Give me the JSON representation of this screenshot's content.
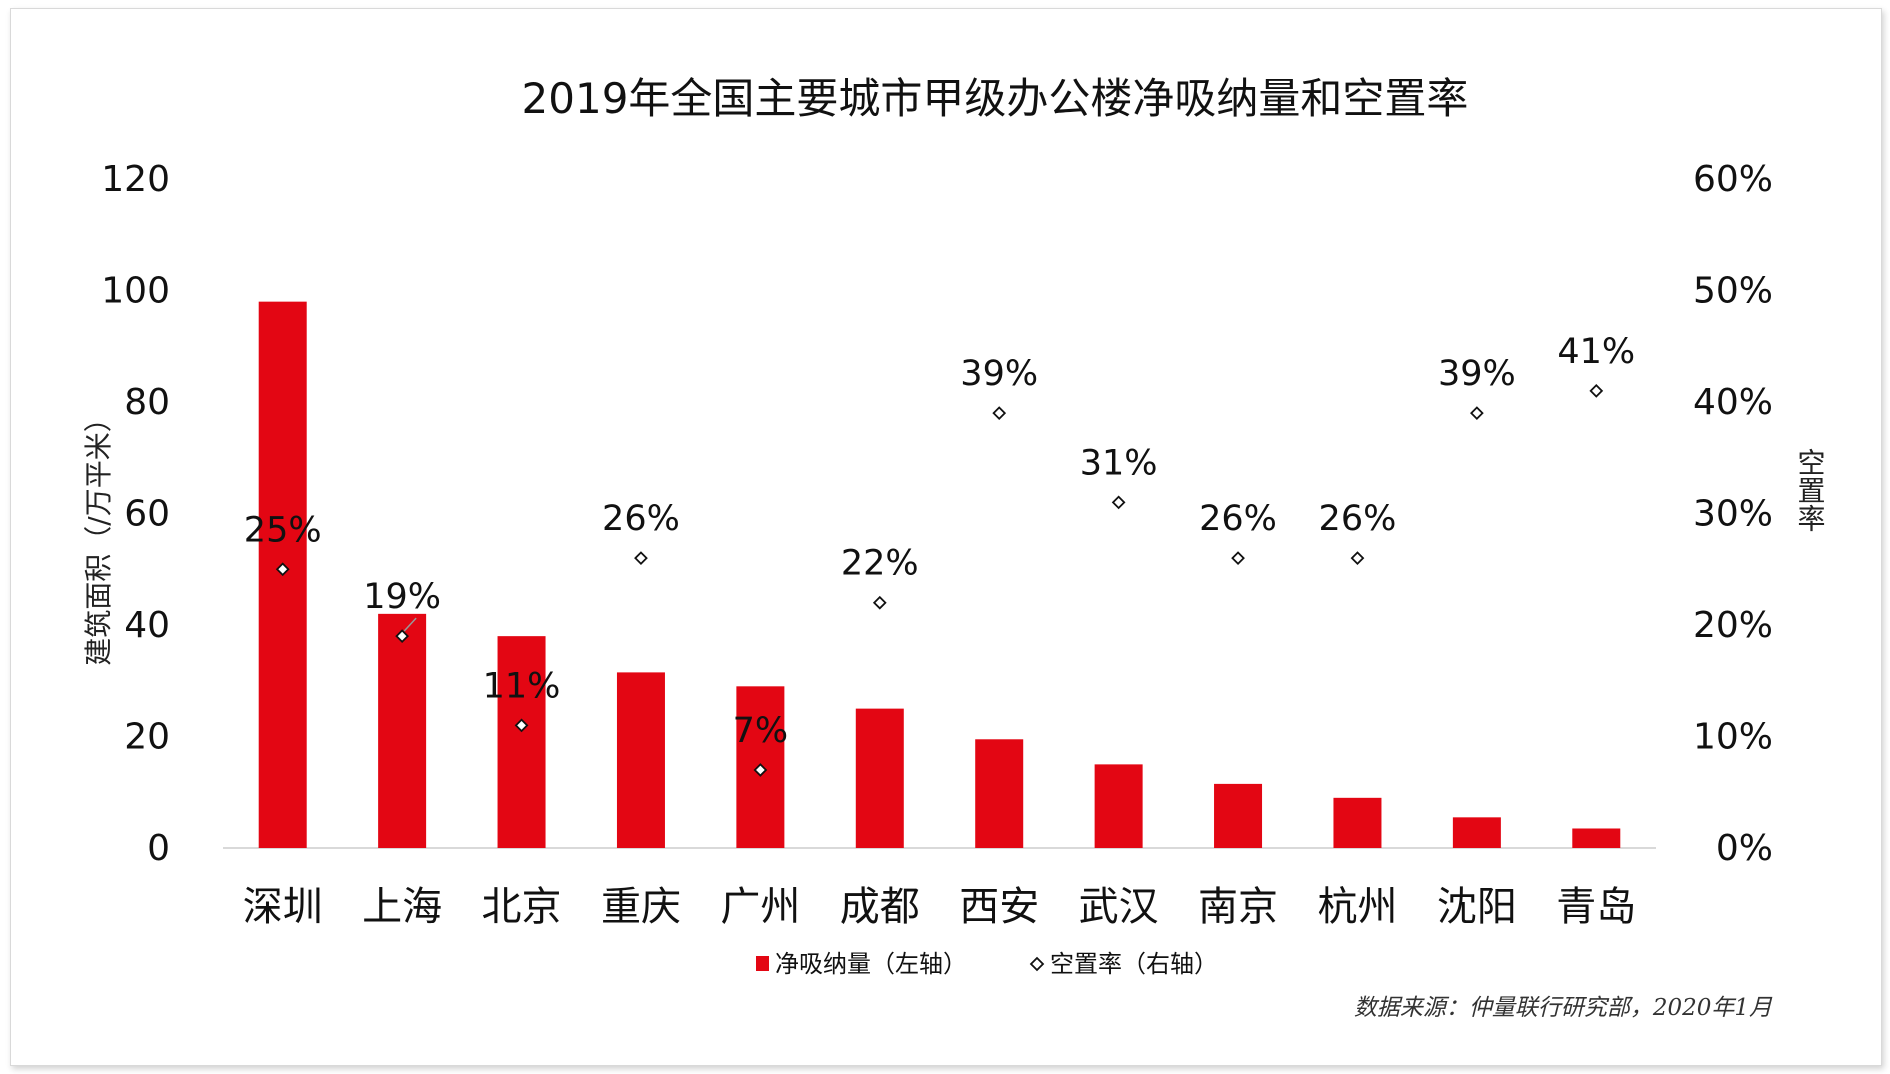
{
  "chart_data": {
    "type": "bar",
    "title": "2019年全国主要城市甲级办公楼净吸纳量和空置率",
    "categories": [
      "深圳",
      "上海",
      "北京",
      "重庆",
      "广州",
      "成都",
      "西安",
      "武汉",
      "南京",
      "杭州",
      "沈阳",
      "青岛"
    ],
    "series": [
      {
        "name": "净吸纳量（左轴）",
        "type": "bar",
        "axis": "left",
        "color": "#E30613",
        "values": [
          98,
          42,
          38,
          31.5,
          29,
          25,
          19.5,
          15,
          11.5,
          9,
          5.5,
          3.5
        ]
      },
      {
        "name": "空置率（右轴）",
        "type": "scatter",
        "axis": "right",
        "marker": "diamond-outline",
        "values": [
          0.25,
          0.19,
          0.11,
          0.26,
          0.07,
          0.22,
          0.39,
          0.31,
          0.26,
          0.26,
          0.39,
          0.41
        ],
        "labels": [
          "25%",
          "19%",
          "11%",
          "26%",
          "7%",
          "22%",
          "39%",
          "31%",
          "26%",
          "26%",
          "39%",
          "41%"
        ]
      }
    ],
    "ylabel": "建筑面积（/万平米）",
    "y2label": "空置率",
    "ylim": [
      0,
      120
    ],
    "y2lim": [
      0,
      0.6
    ],
    "yticks": [
      "0",
      "20",
      "40",
      "60",
      "80",
      "100",
      "120"
    ],
    "y2ticks": [
      "0%",
      "10%",
      "20%",
      "30%",
      "40%",
      "50%",
      "60%"
    ],
    "grid": false,
    "legend": "bottom-center",
    "source": "数据来源：仲量联行研究部，2020年1月"
  }
}
